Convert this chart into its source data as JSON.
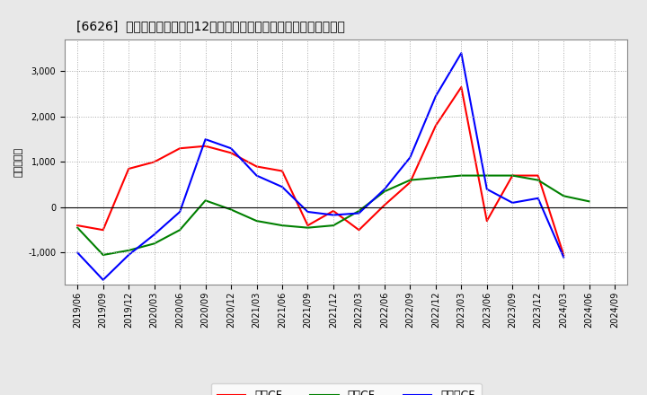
{
  "title": "[6626]  キャッシュフローの12か月移動合計の対前年同期増減額の推移",
  "ylabel": "（百万円）",
  "x_labels": [
    "2019/06",
    "2019/09",
    "2019/12",
    "2020/03",
    "2020/06",
    "2020/09",
    "2020/12",
    "2021/03",
    "2021/06",
    "2021/09",
    "2021/12",
    "2022/03",
    "2022/06",
    "2022/09",
    "2022/12",
    "2023/03",
    "2023/06",
    "2023/09",
    "2023/12",
    "2024/03",
    "2024/06",
    "2024/09"
  ],
  "eigyo_cf": [
    -400,
    -500,
    850,
    1000,
    1300,
    1350,
    1200,
    900,
    800,
    -400,
    -80,
    -500,
    50,
    550,
    1800,
    2650,
    -300,
    700,
    700,
    -1050,
    null,
    null
  ],
  "toshi_cf": [
    -450,
    -1050,
    -950,
    -800,
    -500,
    150,
    -50,
    -300,
    -400,
    -450,
    -400,
    -80,
    350,
    600,
    650,
    700,
    700,
    700,
    600,
    250,
    130,
    null
  ],
  "free_cf": [
    -1000,
    -1600,
    -1050,
    -600,
    -100,
    1500,
    1300,
    700,
    450,
    -100,
    -170,
    -130,
    400,
    1100,
    2450,
    3400,
    400,
    100,
    200,
    -1100,
    null,
    null
  ],
  "eigyo_color": "#ff0000",
  "toshi_color": "#008000",
  "free_color": "#0000ff",
  "ylim": [
    -1700,
    3700
  ],
  "yticks": [
    -1000,
    0,
    1000,
    2000,
    3000
  ],
  "bg_color": "#e8e8e8",
  "plot_bg_color": "#ffffff",
  "grid_color": "#aaaaaa",
  "legend_labels": [
    "営業CF",
    "投資CF",
    "フリーCF"
  ]
}
